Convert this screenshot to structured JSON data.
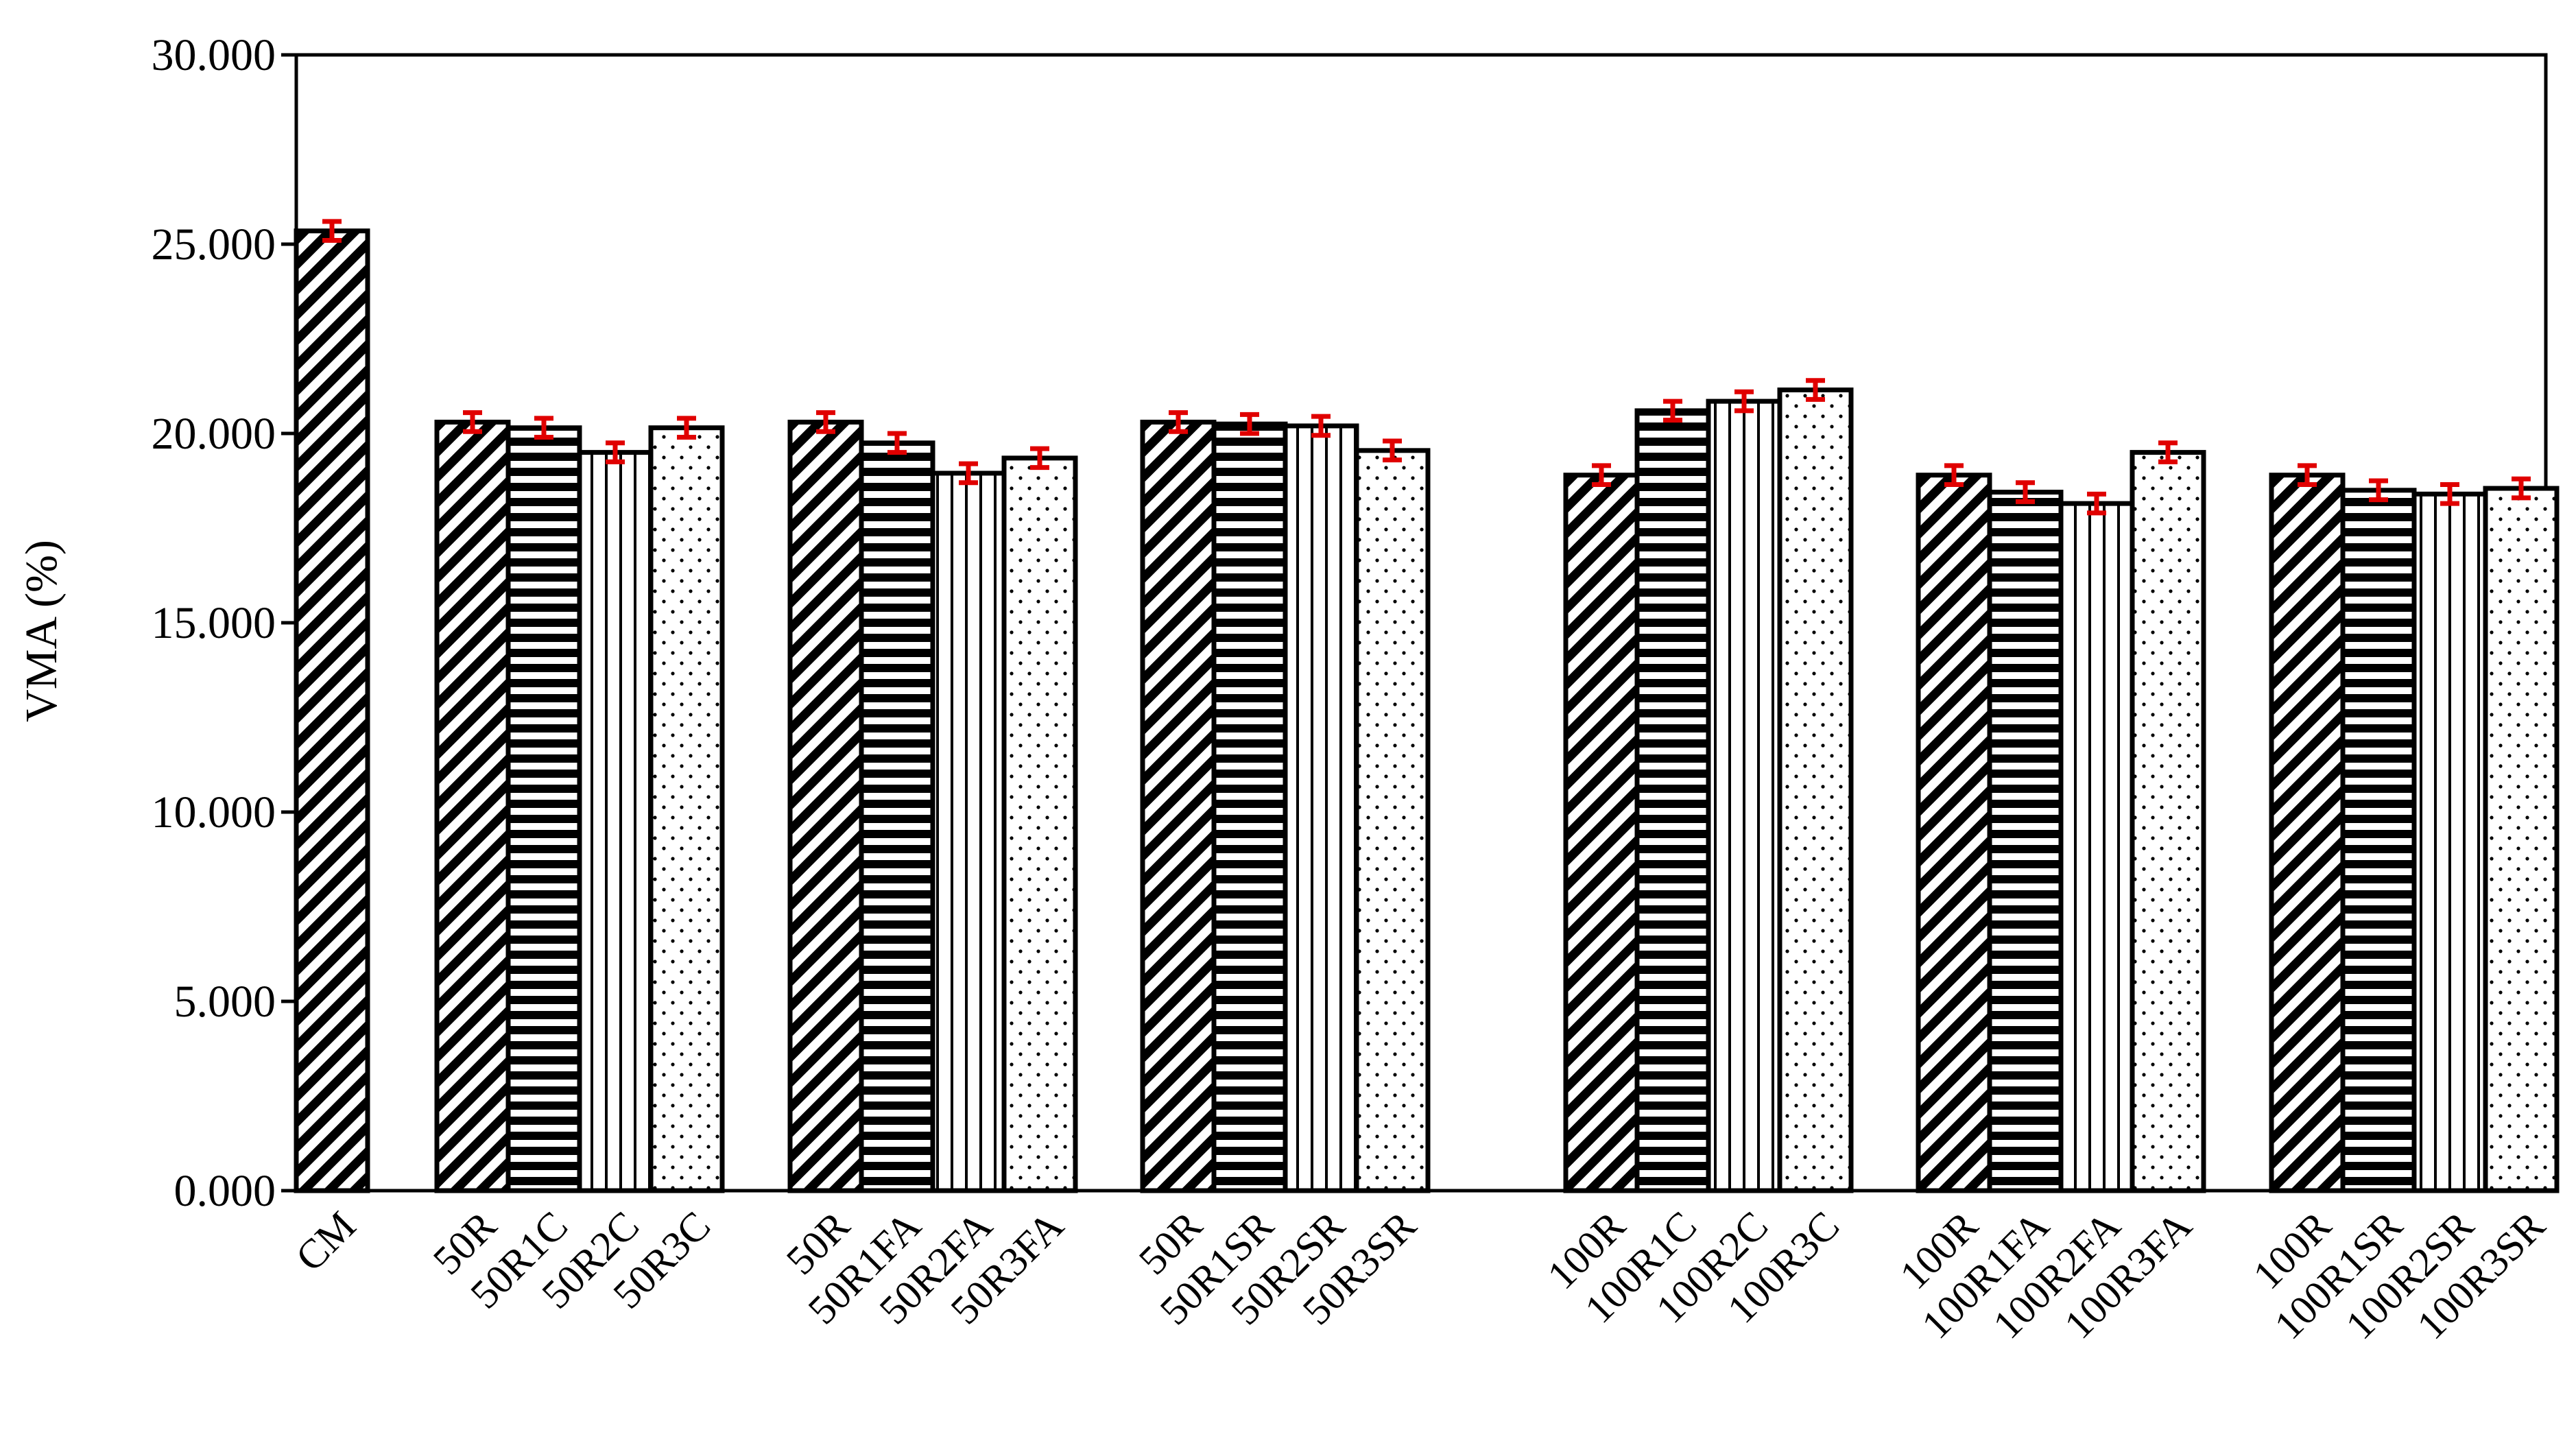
{
  "chart_data": {
    "type": "bar",
    "title": "",
    "xlabel": "",
    "ylabel": "VMA (%)",
    "ylim": [
      0,
      30
    ],
    "yticks": [
      "0.000",
      "5.000",
      "10.000",
      "15.000",
      "20.000",
      "25.000",
      "30.000"
    ],
    "ytick_values": [
      0,
      5,
      10,
      15,
      20,
      25,
      30
    ],
    "grid": false,
    "legend": "none",
    "error_color": "#e00000",
    "bars": [
      {
        "label": "CM",
        "value": 25.35,
        "err": 0.25,
        "pattern": "diagonal",
        "group": 0
      },
      {
        "label": "50R",
        "value": 20.3,
        "err": 0.25,
        "pattern": "diagonal",
        "group": 1
      },
      {
        "label": "50R1C",
        "value": 20.15,
        "err": 0.25,
        "pattern": "horizontal",
        "group": 1
      },
      {
        "label": "50R2C",
        "value": 19.5,
        "err": 0.25,
        "pattern": "vertical",
        "group": 1
      },
      {
        "label": "50R3C",
        "value": 20.15,
        "err": 0.25,
        "pattern": "dots",
        "group": 1
      },
      {
        "label": "50R",
        "value": 20.3,
        "err": 0.25,
        "pattern": "diagonal",
        "group": 2
      },
      {
        "label": "50R1FA",
        "value": 19.75,
        "err": 0.25,
        "pattern": "horizontal",
        "group": 2
      },
      {
        "label": "50R2FA",
        "value": 18.95,
        "err": 0.25,
        "pattern": "vertical",
        "group": 2
      },
      {
        "label": "50R3FA",
        "value": 19.35,
        "err": 0.25,
        "pattern": "dots",
        "group": 2
      },
      {
        "label": "50R",
        "value": 20.3,
        "err": 0.25,
        "pattern": "diagonal",
        "group": 3
      },
      {
        "label": "50R1SR",
        "value": 20.25,
        "err": 0.25,
        "pattern": "horizontal",
        "group": 3
      },
      {
        "label": "50R2SR",
        "value": 20.2,
        "err": 0.25,
        "pattern": "vertical",
        "group": 3
      },
      {
        "label": "50R3SR",
        "value": 19.55,
        "err": 0.25,
        "pattern": "dots",
        "group": 3
      },
      {
        "label": "100R",
        "value": 18.9,
        "err": 0.25,
        "pattern": "diagonal",
        "group": 4
      },
      {
        "label": "100R1C",
        "value": 20.6,
        "err": 0.25,
        "pattern": "horizontal",
        "group": 4
      },
      {
        "label": "100R2C",
        "value": 20.85,
        "err": 0.25,
        "pattern": "vertical",
        "group": 4
      },
      {
        "label": "100R3C",
        "value": 21.15,
        "err": 0.25,
        "pattern": "dots",
        "group": 4
      },
      {
        "label": "100R",
        "value": 18.9,
        "err": 0.25,
        "pattern": "diagonal",
        "group": 5
      },
      {
        "label": "100R1FA",
        "value": 18.45,
        "err": 0.25,
        "pattern": "horizontal",
        "group": 5
      },
      {
        "label": "100R2FA",
        "value": 18.15,
        "err": 0.25,
        "pattern": "vertical",
        "group": 5
      },
      {
        "label": "100R3FA",
        "value": 19.5,
        "err": 0.25,
        "pattern": "dots",
        "group": 5
      },
      {
        "label": "100R",
        "value": 18.9,
        "err": 0.25,
        "pattern": "diagonal",
        "group": 6
      },
      {
        "label": "100R1SR",
        "value": 18.5,
        "err": 0.25,
        "pattern": "horizontal",
        "group": 6
      },
      {
        "label": "100R2SR",
        "value": 18.4,
        "err": 0.25,
        "pattern": "vertical",
        "group": 6
      },
      {
        "label": "100R3SR",
        "value": 18.55,
        "err": 0.25,
        "pattern": "dots",
        "group": 6
      }
    ]
  }
}
